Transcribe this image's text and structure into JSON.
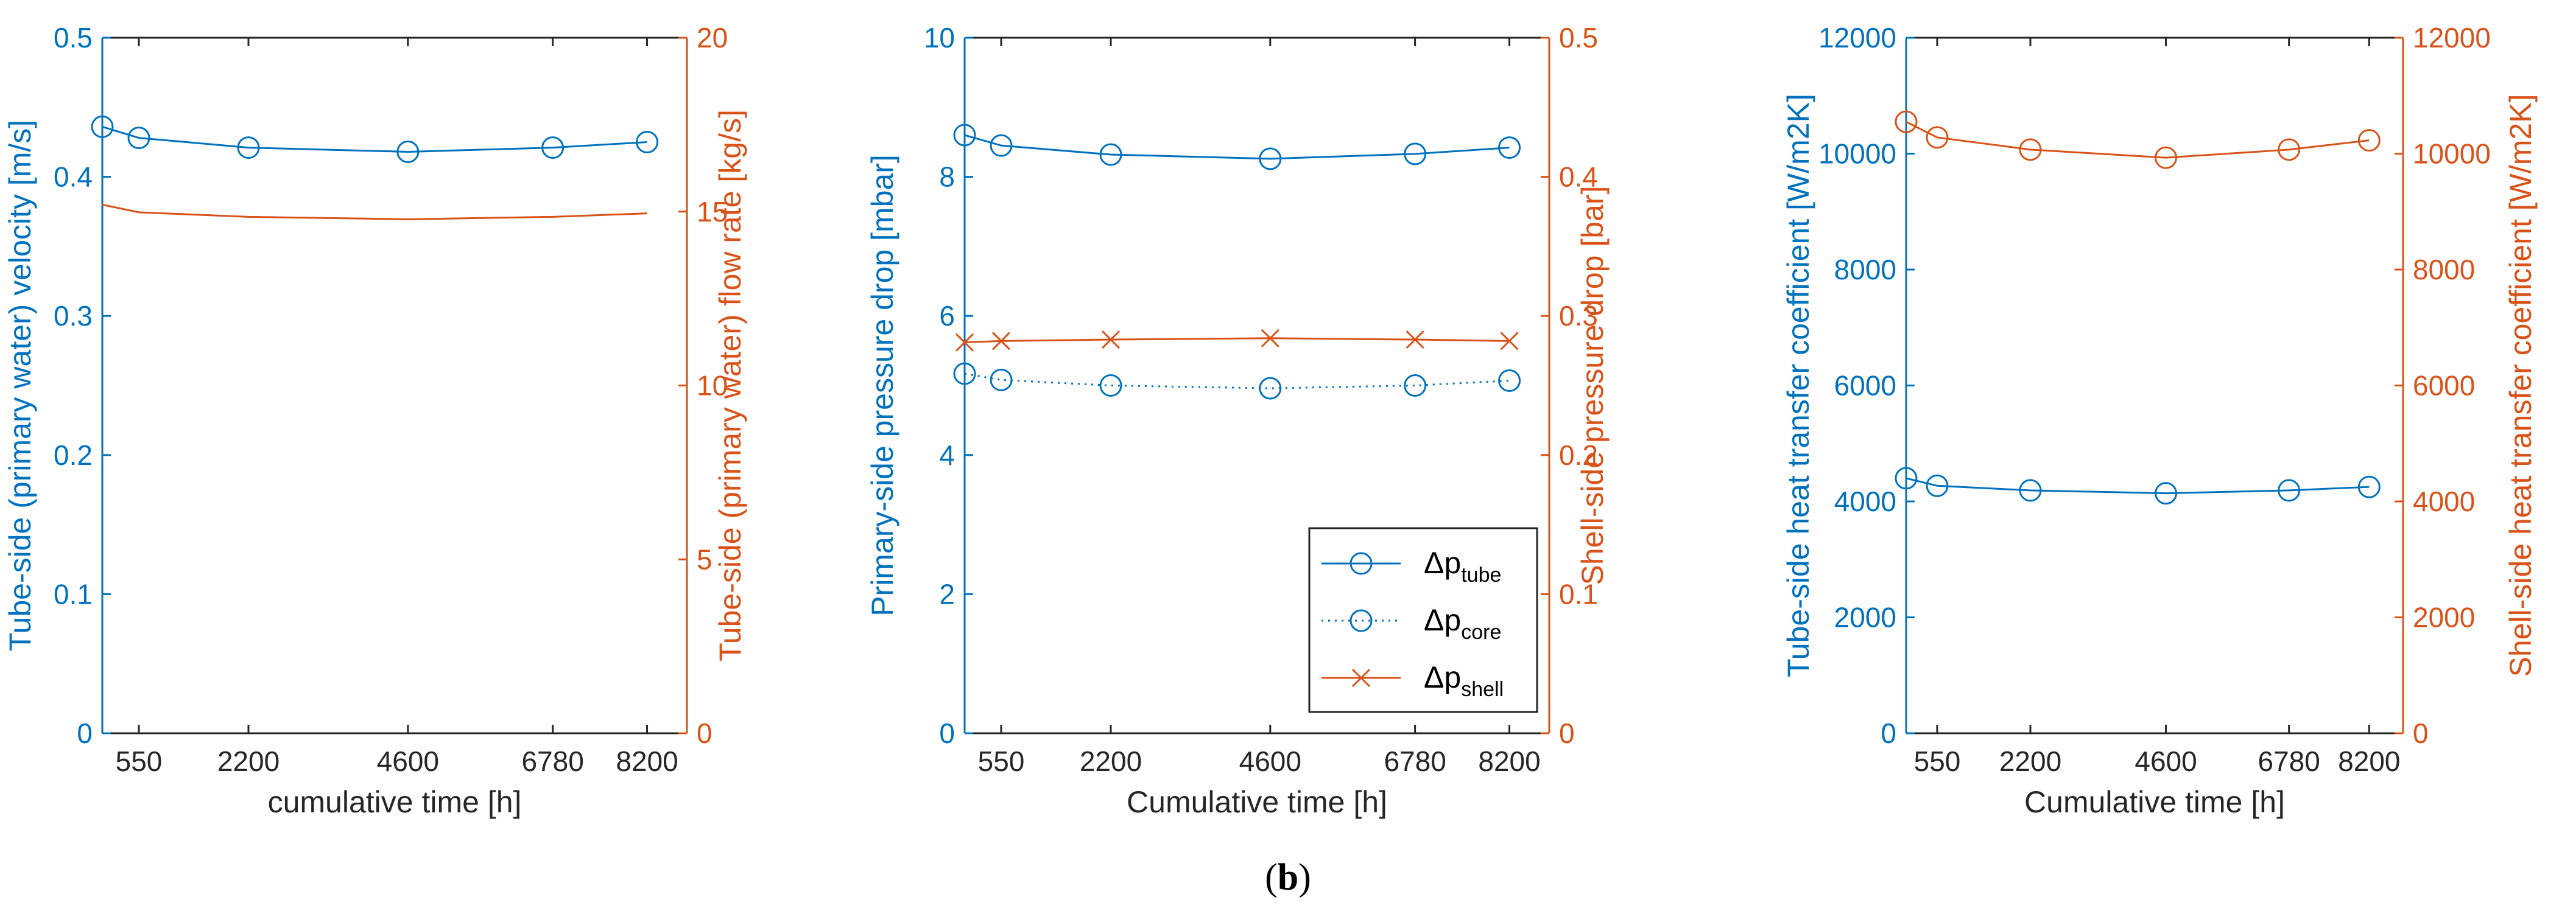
{
  "caption": {
    "open": "(",
    "label": "b",
    "close": ")"
  },
  "colors": {
    "left_axis": "#0072BD",
    "right_axis": "#D95319",
    "axes": "#262626",
    "legend_text": "#000000"
  },
  "chart_data": [
    {
      "type": "line",
      "xlabel": "cumulative time [h]",
      "xlim": [
        0,
        8800
      ],
      "xticks": [
        550,
        2200,
        4600,
        6780,
        8200
      ],
      "x": [
        0,
        550,
        2200,
        4600,
        6780,
        8200
      ],
      "left_axis": {
        "label": "Tube-side (primary water) velocity [m/s]",
        "ylim": [
          0,
          0.5
        ],
        "ticks": [
          "0",
          "0.1",
          "0.2",
          "0.3",
          "0.4",
          "0.5"
        ]
      },
      "right_axis": {
        "label": "Tube-side (primary water) flow rate [kg/s]",
        "ylim": [
          0,
          20
        ],
        "ticks": [
          "0",
          "5",
          "10",
          "15",
          "20"
        ]
      },
      "series": [
        {
          "name": "velocity",
          "axis": "left",
          "values": [
            0.436,
            0.428,
            0.421,
            0.418,
            0.421,
            0.425
          ],
          "marker": "circle",
          "linestyle": "solid"
        },
        {
          "name": "flow rate",
          "axis": "right",
          "values": [
            15.2,
            14.98,
            14.85,
            14.78,
            14.85,
            14.95
          ],
          "marker": "none",
          "linestyle": "solid"
        }
      ]
    },
    {
      "type": "line",
      "xlabel": "Cumulative time [h]",
      "xlim": [
        0,
        8800
      ],
      "xticks": [
        550,
        2200,
        4600,
        6780,
        8200
      ],
      "x": [
        0,
        550,
        2200,
        4600,
        6780,
        8200
      ],
      "left_axis": {
        "label": "Primary-side pressure drop [mbar]",
        "ylim": [
          0,
          10
        ],
        "ticks": [
          "0",
          "2",
          "4",
          "6",
          "8",
          "10"
        ]
      },
      "right_axis": {
        "label": "Shell-side pressure drop [bar]",
        "ylim": [
          0,
          0.5
        ],
        "ticks": [
          "0",
          "0.1",
          "0.2",
          "0.3",
          "0.4",
          "0.5"
        ]
      },
      "series": [
        {
          "name": "Δp",
          "sub": "tube",
          "axis": "left",
          "values": [
            8.6,
            8.45,
            8.32,
            8.26,
            8.33,
            8.42
          ],
          "marker": "circle",
          "linestyle": "solid"
        },
        {
          "name": "Δp",
          "sub": "core",
          "axis": "left",
          "values": [
            5.17,
            5.08,
            5.0,
            4.96,
            5.0,
            5.07
          ],
          "marker": "circle",
          "linestyle": "dotted"
        },
        {
          "name": "Δp",
          "sub": "shell",
          "axis": "right",
          "values": [
            0.281,
            0.282,
            0.283,
            0.284,
            0.283,
            0.282
          ],
          "marker": "x",
          "linestyle": "solid"
        }
      ],
      "legend": {
        "location": "bottom-right",
        "entries": [
          {
            "name": "Δp",
            "sub": "tube"
          },
          {
            "name": "Δp",
            "sub": "core"
          },
          {
            "name": "Δp",
            "sub": "shell"
          }
        ]
      }
    },
    {
      "type": "line",
      "xlabel": "Cumulative time [h]",
      "xlim": [
        0,
        8800
      ],
      "xticks": [
        550,
        2200,
        4600,
        6780,
        8200
      ],
      "xticklabels": [
        "550",
        "2200",
        "4600",
        "6780",
        "8200"
      ],
      "x": [
        0,
        550,
        2200,
        4600,
        6780,
        8200
      ],
      "left_axis": {
        "label": "Tube-side heat transfer coefficient [W/m2K]",
        "ylim": [
          0,
          12000
        ],
        "ticks": [
          "0",
          "2000",
          "4000",
          "6000",
          "8000",
          "10000",
          "12000"
        ]
      },
      "right_axis": {
        "label": "Shell-side heat transfer coefficient [W/m2K]",
        "ylim": [
          0,
          12000
        ],
        "ticks": [
          "0",
          "2000",
          "4000",
          "6000",
          "8000",
          "10000",
          "12000"
        ]
      },
      "series": [
        {
          "name": "tube-side htc",
          "axis": "left",
          "values": [
            4400,
            4270,
            4190,
            4140,
            4190,
            4250
          ],
          "marker": "circle",
          "linestyle": "solid"
        },
        {
          "name": "shell-side htc",
          "axis": "right",
          "values": [
            10550,
            10280,
            10070,
            9930,
            10070,
            10230
          ],
          "marker": "circle",
          "linestyle": "solid"
        }
      ]
    }
  ]
}
